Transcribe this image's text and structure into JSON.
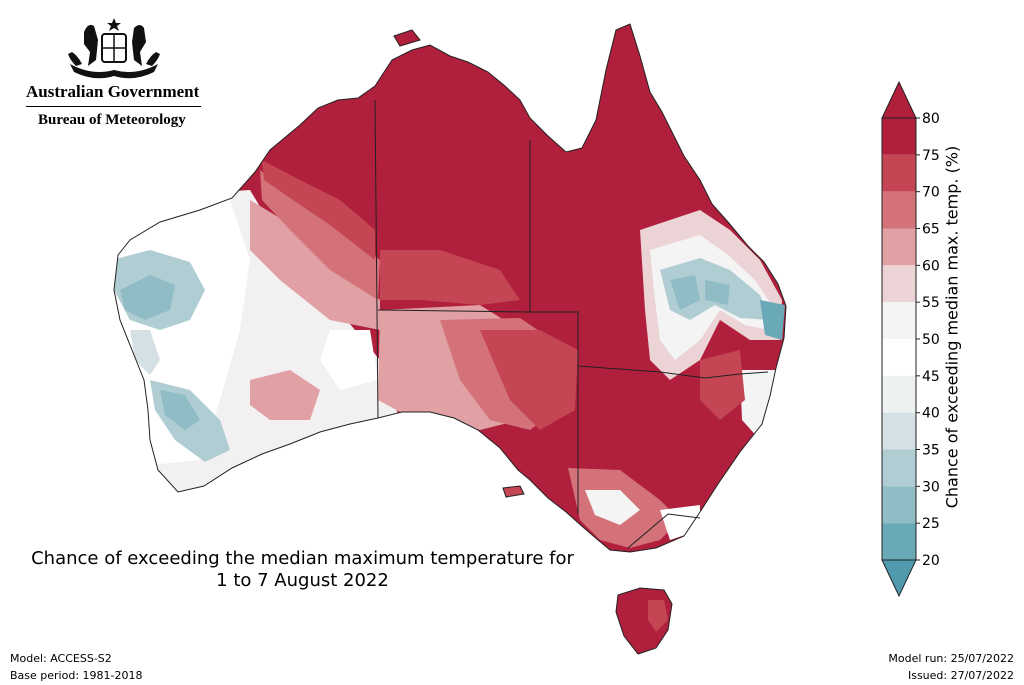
{
  "header": {
    "logo_icon": "coat-of-arms-icon",
    "gov_title": "Australian Government",
    "bureau": "Bureau of Meteorology"
  },
  "map": {
    "title_line1": "Chance of exceeding the median maximum temperature for",
    "title_line2": "1 to 7 August 2022"
  },
  "colorbar": {
    "label": "Chance of exceeding median max. temp. (%)",
    "ticks": [
      "80",
      "75",
      "70",
      "65",
      "60",
      "55",
      "50",
      "45",
      "40",
      "35",
      "30",
      "25",
      "20"
    ],
    "colors": [
      "#b01f3c",
      "#c44654",
      "#d4727a",
      "#e0a0a4",
      "#ecd4d6",
      "#f4f4f4",
      "#ffffff",
      "#eef1f2",
      "#d4e0e3",
      "#b0cdd3",
      "#8fbcc5",
      "#6aaab8",
      "#4f9aac"
    ],
    "over_color": "#b01f3c",
    "under_color": "#4f9aac"
  },
  "footer": {
    "model": "Model: ACCESS-S2",
    "base_period": "Base period: 1981-2018",
    "model_run": "Model run: 25/07/2022",
    "issued": "Issued: 27/07/2022"
  }
}
